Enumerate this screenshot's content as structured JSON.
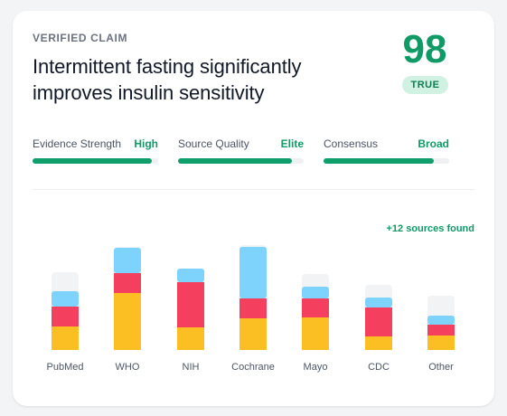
{
  "claim": {
    "eyebrow": "VERIFIED CLAIM",
    "headline": "Intermittent fasting significantly improves insulin sensitivity",
    "score": "98",
    "verdict": "TRUE"
  },
  "metrics": [
    {
      "label": "Evidence Strength",
      "value": "High",
      "progress": 0.95
    },
    {
      "label": "Source Quality",
      "value": "Elite",
      "progress": 0.91
    },
    {
      "label": "Consensus",
      "value": "Broad",
      "progress": 0.88
    }
  ],
  "sources": {
    "found_text": "+12 sources found"
  },
  "colors": {
    "accent": "#0f9a66",
    "seg_bottom": "#fbbf24",
    "seg_middle": "#f43f5e",
    "seg_top": "#7dd3fc",
    "track": "#f2f3f5"
  },
  "chart_data": {
    "type": "bar",
    "stacked": true,
    "categories": [
      "PubMed",
      "WHO",
      "NIH",
      "Cochrane",
      "Mayo",
      "CDC",
      "Other"
    ],
    "series": [
      {
        "values": [
          26,
          63,
          25,
          35,
          36,
          15,
          16
        ]
      },
      {
        "values": [
          22,
          22,
          50,
          22,
          21,
          32,
          12
        ]
      },
      {
        "values": [
          17,
          28,
          15,
          57,
          13,
          11,
          10
        ]
      }
    ],
    "track_totals": [
      86,
      114,
      84,
      116,
      84,
      72,
      60
    ],
    "ylim": [
      0,
      116
    ],
    "legend": "none",
    "grid": false
  }
}
